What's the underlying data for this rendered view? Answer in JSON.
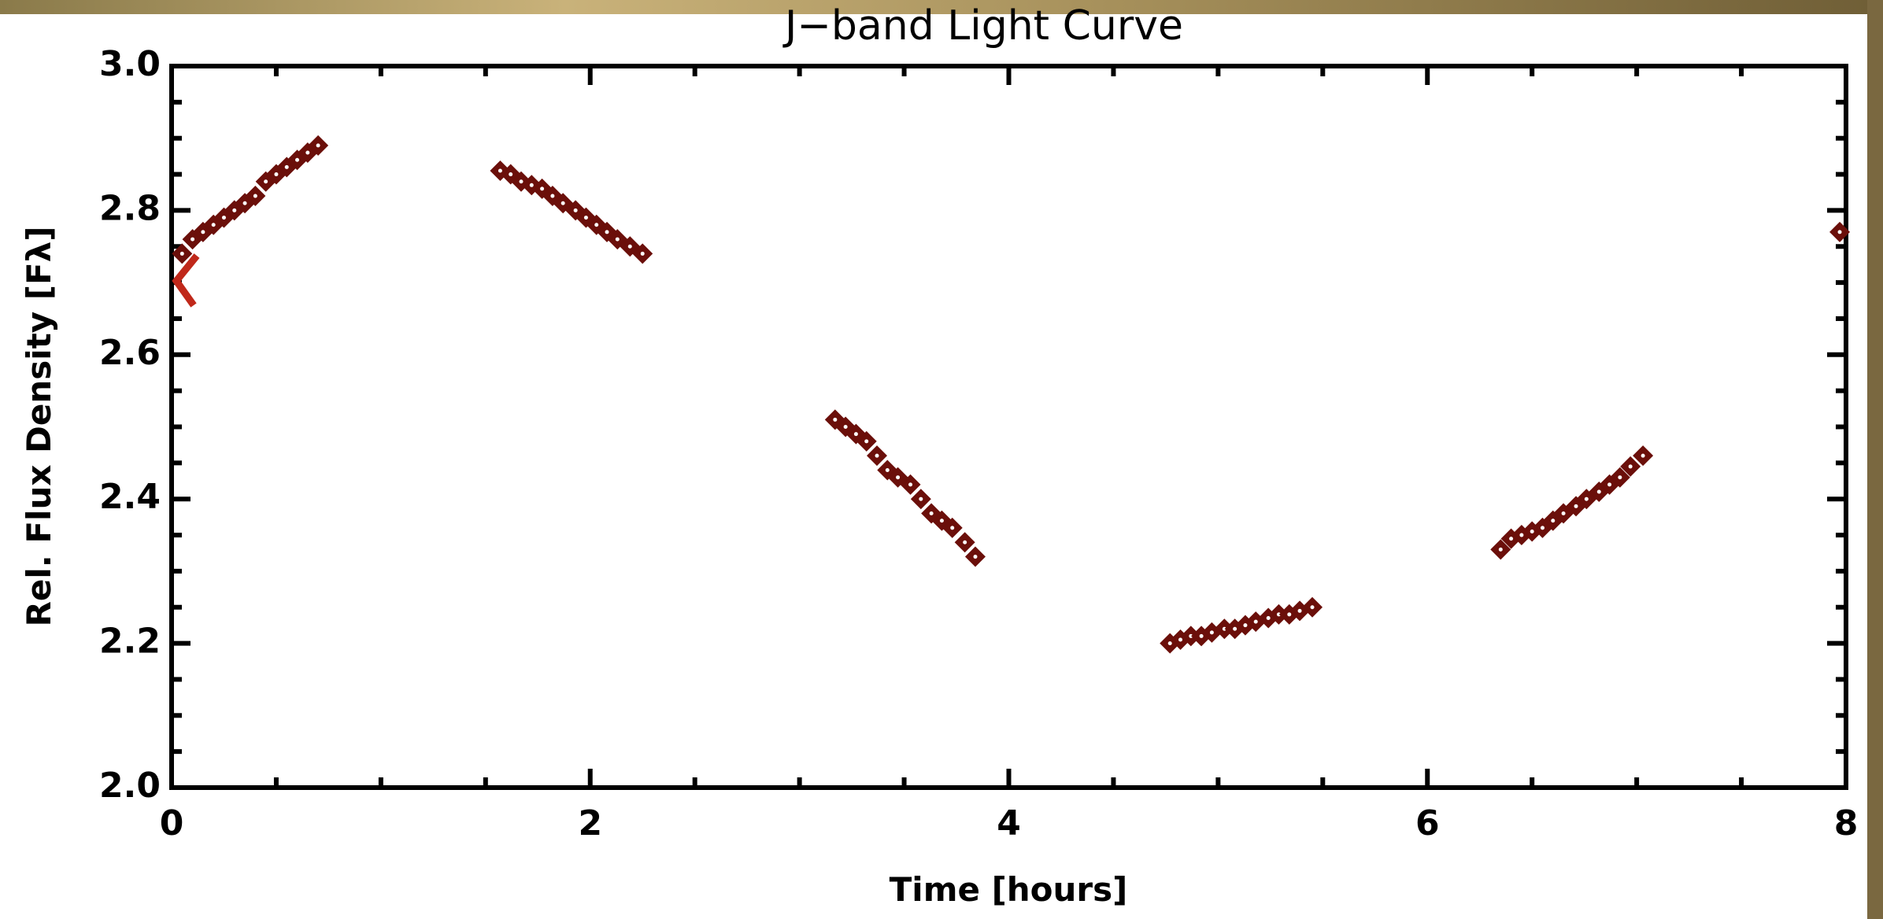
{
  "chart_data": {
    "type": "scatter",
    "title": "J−band Light Curve",
    "x_label": "Time [hours]",
    "y_label": "Rel. Flux Density [Fλ]",
    "xlim": [
      0,
      8
    ],
    "ylim": [
      2.0,
      3.0
    ],
    "xticks": [
      0,
      2,
      4,
      6,
      8
    ],
    "yticks": [
      {
        "value": 2.0,
        "label": "2.0"
      },
      2.2,
      2.4,
      2.6,
      2.8,
      {
        "value": 3.0,
        "label": "3.0"
      }
    ],
    "x_minor_ticks": [
      0.5,
      1,
      1.5,
      2.5,
      3,
      3.5,
      4.5,
      5,
      5.5,
      6.5,
      7,
      7.5
    ],
    "y_minor_ticks": [
      2.05,
      2.1,
      2.15,
      2.25,
      2.3,
      2.35,
      2.45,
      2.5,
      2.55,
      2.65,
      2.7,
      2.75,
      2.85,
      2.9,
      2.95
    ],
    "grid": false,
    "series": [
      {
        "color": "#6b0f0a",
        "x": [
          0.05,
          0.1,
          0.15,
          0.2,
          0.25,
          0.3,
          0.35,
          0.4,
          0.45,
          0.5,
          0.55,
          0.6,
          0.65,
          0.7,
          1.57,
          1.62,
          1.67,
          1.72,
          1.77,
          1.82,
          1.87,
          1.93,
          1.98,
          2.03,
          2.08,
          2.13,
          2.19,
          2.25,
          3.17,
          3.22,
          3.27,
          3.32,
          3.37,
          3.42,
          3.47,
          3.53,
          3.58,
          3.63,
          3.68,
          3.73,
          3.79,
          3.84,
          4.77,
          4.82,
          4.87,
          4.92,
          4.97,
          5.03,
          5.08,
          5.13,
          5.18,
          5.24,
          5.29,
          5.34,
          5.39,
          5.45,
          6.35,
          6.4,
          6.45,
          6.5,
          6.55,
          6.6,
          6.65,
          6.71,
          6.76,
          6.82,
          6.87,
          6.92,
          6.97,
          7.03,
          7.97
        ],
        "values": [
          2.74,
          2.76,
          2.77,
          2.78,
          2.79,
          2.8,
          2.81,
          2.82,
          2.84,
          2.85,
          2.86,
          2.87,
          2.88,
          2.89,
          2.855,
          2.85,
          2.84,
          2.835,
          2.83,
          2.82,
          2.81,
          2.8,
          2.79,
          2.78,
          2.77,
          2.76,
          2.75,
          2.74,
          2.51,
          2.5,
          2.49,
          2.48,
          2.46,
          2.44,
          2.43,
          2.42,
          2.4,
          2.38,
          2.37,
          2.36,
          2.34,
          2.32,
          2.2,
          2.205,
          2.21,
          2.21,
          2.215,
          2.22,
          2.22,
          2.225,
          2.23,
          2.235,
          2.24,
          2.24,
          2.245,
          2.25,
          2.33,
          2.345,
          2.35,
          2.355,
          2.36,
          2.37,
          2.38,
          2.39,
          2.4,
          2.41,
          2.42,
          2.43,
          2.445,
          2.46,
          2.77
        ]
      }
    ]
  }
}
